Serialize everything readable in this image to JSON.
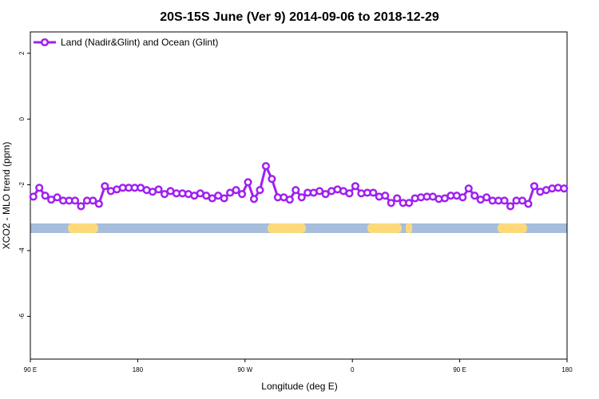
{
  "chart_data": {
    "type": "line",
    "title": "20S-15S June (Ver 9)   2014-09-06 to 2018-12-29",
    "xlabel": "Longitude (deg E)",
    "ylabel": "XCO2 - MLO trend (ppm)",
    "xlim": [
      90,
      540
    ],
    "ylim": [
      -7.3,
      2.65
    ],
    "xticks": [
      {
        "value": 90,
        "label": "90 E"
      },
      180,
      {
        "value": 270,
        "label": "90 W"
      },
      {
        "value": 360,
        "label": "0"
      },
      {
        "value": 450,
        "label": "90 E"
      },
      {
        "value": 540,
        "label": "180"
      }
    ],
    "yticks": [
      2,
      0,
      -2,
      -4,
      -6
    ],
    "legend": "top-left",
    "x": [
      92.5,
      97.5,
      102.5,
      107.5,
      112.5,
      117.5,
      122.5,
      127.5,
      132.5,
      137.5,
      142.5,
      147.5,
      152.5,
      157.5,
      162.5,
      167.5,
      172.5,
      177.5,
      182.5,
      187.5,
      192.5,
      197.5,
      202.5,
      207.5,
      212.5,
      217.5,
      222.5,
      227.5,
      232.5,
      237.5,
      242.5,
      247.5,
      252.5,
      257.5,
      262.5,
      267.5,
      272.5,
      277.5,
      282.5,
      287.5,
      292.5,
      297.5,
      302.5,
      307.5,
      312.5,
      317.5,
      322.5,
      327.5,
      332.5,
      337.5,
      342.5,
      347.5,
      352.5,
      357.5,
      362.5,
      367.5,
      372.5,
      377.5,
      382.5,
      387.5,
      392.5,
      397.5,
      402.5,
      407.5,
      412.5,
      417.5,
      422.5,
      427.5,
      432.5,
      437.5,
      442.5,
      447.5,
      452.5,
      457.5,
      462.5,
      467.5,
      472.5,
      477.5,
      482.5,
      487.5,
      492.5,
      497.5,
      502.5,
      507.5,
      512.5,
      517.5,
      522.5,
      527.5,
      532.5,
      537.5
    ],
    "series": [
      {
        "name": "Land (Nadir&Glint) and Ocean (Glint)",
        "color": "#a020f0",
        "values": [
          -2.36,
          -2.09,
          -2.33,
          -2.45,
          -2.38,
          -2.48,
          -2.48,
          -2.48,
          -2.65,
          -2.48,
          -2.48,
          -2.58,
          -2.04,
          -2.19,
          -2.14,
          -2.09,
          -2.09,
          -2.09,
          -2.09,
          -2.16,
          -2.21,
          -2.14,
          -2.28,
          -2.19,
          -2.26,
          -2.26,
          -2.28,
          -2.33,
          -2.26,
          -2.33,
          -2.41,
          -2.33,
          -2.41,
          -2.24,
          -2.16,
          -2.28,
          -1.92,
          -2.43,
          -2.16,
          -1.43,
          -1.82,
          -2.38,
          -2.38,
          -2.45,
          -2.16,
          -2.38,
          -2.24,
          -2.24,
          -2.19,
          -2.28,
          -2.19,
          -2.14,
          -2.19,
          -2.26,
          -2.04,
          -2.26,
          -2.24,
          -2.24,
          -2.36,
          -2.33,
          -2.55,
          -2.41,
          -2.55,
          -2.55,
          -2.41,
          -2.38,
          -2.36,
          -2.36,
          -2.43,
          -2.41,
          -2.33,
          -2.33,
          -2.38,
          -2.11,
          -2.33,
          -2.45,
          -2.38,
          -2.48,
          -2.48,
          -2.48,
          -2.65,
          -2.48,
          -2.48,
          -2.58,
          -2.04,
          -2.21,
          -2.16,
          -2.11,
          -2.09,
          -2.11
        ]
      }
    ]
  }
}
